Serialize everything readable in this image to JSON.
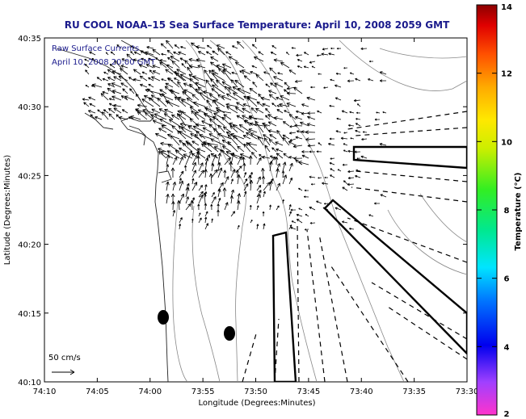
{
  "title": "RU COOL  NOAA–15  Sea Surface Temperature:  April 10, 2008 2059 GMT",
  "overlay": {
    "line1": "Raw Surface Currents",
    "line2": "April 10, 2008 20:00 GMT"
  },
  "axes": {
    "xlabel": "Longitude (Degrees:Minutes)",
    "ylabel": "Latitude (Degrees:Minutes)",
    "x_ticks": [
      "74:10",
      "74:05",
      "74:00",
      "73:55",
      "73:50",
      "73:45",
      "73:40",
      "73:35",
      "73:30"
    ],
    "y_ticks": [
      "40:10",
      "40:15",
      "40:20",
      "40:25",
      "40:30",
      "40:35"
    ]
  },
  "scale": {
    "label": "50 cm/s"
  },
  "colorbar": {
    "label": "Temperature (°C)",
    "ticks": [
      "2",
      "4",
      "6",
      "8",
      "10",
      "12",
      "14"
    ],
    "min": 2,
    "max": 14
  }
}
